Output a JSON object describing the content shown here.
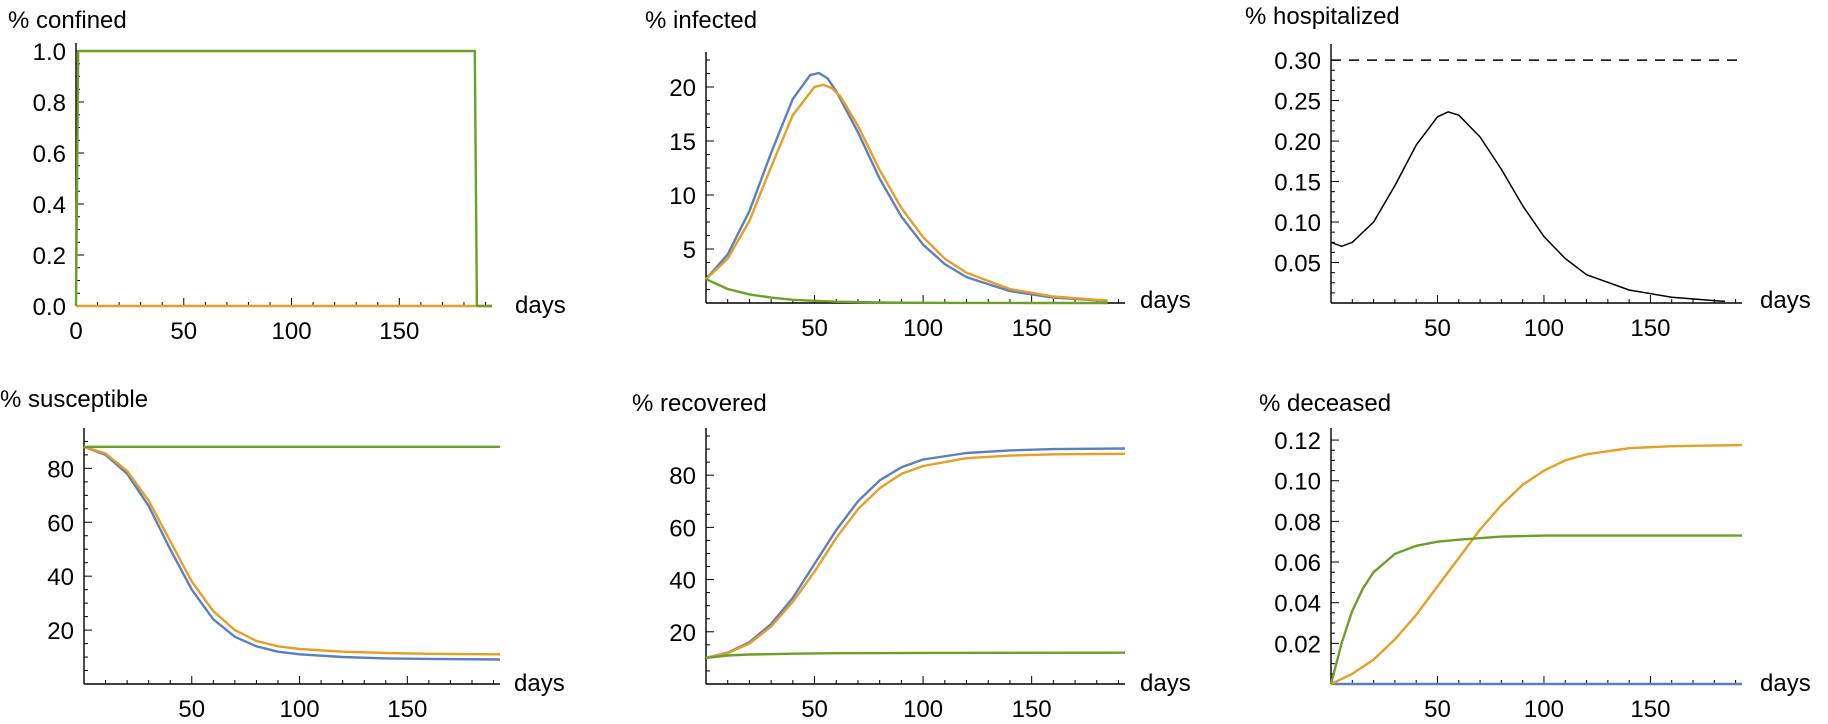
{
  "chart_data": [
    {
      "type": "line",
      "title": "% confined",
      "xlabel": "days",
      "ylabel": "",
      "xlim": [
        0,
        193
      ],
      "ylim": [
        0,
        1.0
      ],
      "xticks": [
        0,
        50,
        100,
        150
      ],
      "yticks": [
        0.0,
        0.2,
        0.4,
        0.6,
        0.8,
        1.0
      ],
      "ytick_labels": [
        "0.0",
        "0.2",
        "0.4",
        "0.6",
        "0.8",
        "1.0"
      ],
      "series": [
        {
          "color": "#e69f26",
          "x": [
            0,
            193
          ],
          "y": [
            0,
            0
          ]
        },
        {
          "color": "#6aa02a",
          "x": [
            0,
            0,
            1,
            185,
            186,
            193
          ],
          "y": [
            0,
            0,
            1,
            1,
            0,
            0
          ]
        }
      ]
    },
    {
      "type": "line",
      "title": "% infected",
      "xlabel": "days",
      "ylabel": "",
      "xlim": [
        0,
        193
      ],
      "ylim": [
        0,
        22.5
      ],
      "xticks": [
        50,
        100,
        150
      ],
      "yticks": [
        5,
        10,
        15,
        20
      ],
      "ytick_labels": [
        "5",
        "10",
        "15",
        "20"
      ],
      "series": [
        {
          "color": "#5b7fbf",
          "x": [
            0,
            10,
            20,
            30,
            40,
            48,
            52,
            56,
            60,
            70,
            80,
            90,
            100,
            110,
            120,
            140,
            160,
            180,
            185
          ],
          "y": [
            2.2,
            4.5,
            8.5,
            13.9,
            18.9,
            21.1,
            21.3,
            20.8,
            19.6,
            15.8,
            11.5,
            8.0,
            5.4,
            3.6,
            2.4,
            1.1,
            0.5,
            0.25,
            0.2
          ]
        },
        {
          "color": "#e69f26",
          "x": [
            0,
            10,
            20,
            30,
            40,
            50,
            54,
            58,
            62,
            70,
            80,
            90,
            100,
            110,
            120,
            140,
            160,
            180,
            185
          ],
          "y": [
            2.2,
            4.1,
            7.6,
            12.6,
            17.4,
            20.0,
            20.2,
            19.9,
            19.1,
            16.4,
            12.3,
            8.8,
            6.1,
            4.1,
            2.8,
            1.3,
            0.6,
            0.3,
            0.25
          ]
        },
        {
          "color": "#6aa02a",
          "x": [
            0,
            10,
            20,
            30,
            40,
            50,
            60,
            80,
            100,
            120,
            150,
            185
          ],
          "y": [
            2.2,
            1.3,
            0.8,
            0.5,
            0.3,
            0.2,
            0.12,
            0.05,
            0.02,
            0.01,
            0,
            0
          ]
        }
      ]
    },
    {
      "type": "line",
      "title": "% hospitalized",
      "xlabel": "days",
      "ylabel": "",
      "xlim": [
        0,
        193
      ],
      "ylim": [
        0,
        0.31
      ],
      "xticks": [
        50,
        100,
        150
      ],
      "yticks": [
        0.05,
        0.1,
        0.15,
        0.2,
        0.25,
        0.3
      ],
      "ytick_labels": [
        "0.05",
        "0.10",
        "0.15",
        "0.20",
        "0.25",
        "0.30"
      ],
      "series": [
        {
          "color": "#000000",
          "dashed": true,
          "x": [
            0,
            193
          ],
          "y": [
            0.3,
            0.3
          ]
        },
        {
          "color": "#000000",
          "x": [
            0,
            5,
            10,
            20,
            30,
            40,
            50,
            55,
            60,
            70,
            80,
            90,
            100,
            110,
            120,
            140,
            160,
            180,
            185
          ],
          "y": [
            0.075,
            0.07,
            0.075,
            0.1,
            0.145,
            0.195,
            0.23,
            0.236,
            0.232,
            0.205,
            0.165,
            0.12,
            0.082,
            0.055,
            0.035,
            0.016,
            0.007,
            0.003,
            0.002
          ]
        }
      ]
    },
    {
      "type": "line",
      "title": "% susceptible",
      "xlabel": "days",
      "ylabel": "",
      "xlim": [
        0,
        193
      ],
      "ylim": [
        0,
        92
      ],
      "xticks": [
        50,
        100,
        150
      ],
      "yticks": [
        20,
        40,
        60,
        80
      ],
      "ytick_labels": [
        "20",
        "40",
        "60",
        "80"
      ],
      "series": [
        {
          "color": "#5b7fbf",
          "x": [
            0,
            10,
            20,
            30,
            40,
            50,
            60,
            70,
            80,
            90,
            100,
            120,
            140,
            160,
            193
          ],
          "y": [
            88,
            85,
            78,
            66,
            50,
            35,
            24,
            17.5,
            14,
            12,
            11,
            10,
            9.5,
            9.3,
            9.1
          ]
        },
        {
          "color": "#e69f26",
          "x": [
            0,
            10,
            20,
            30,
            40,
            50,
            60,
            70,
            80,
            90,
            100,
            120,
            140,
            160,
            193
          ],
          "y": [
            88,
            85.5,
            79,
            68,
            53,
            38,
            27,
            20,
            16,
            14,
            13,
            12,
            11.5,
            11.2,
            11
          ]
        },
        {
          "color": "#6aa02a",
          "x": [
            0,
            193
          ],
          "y": [
            88,
            88
          ]
        }
      ]
    },
    {
      "type": "line",
      "title": "% recovered",
      "xlabel": "days",
      "ylabel": "",
      "xlim": [
        0,
        193
      ],
      "ylim": [
        0,
        95
      ],
      "xticks": [
        50,
        100,
        150
      ],
      "yticks": [
        20,
        40,
        60,
        80
      ],
      "ytick_labels": [
        "20",
        "40",
        "60",
        "80"
      ],
      "series": [
        {
          "color": "#5b7fbf",
          "x": [
            0,
            10,
            20,
            30,
            40,
            50,
            60,
            70,
            80,
            90,
            100,
            120,
            140,
            160,
            193
          ],
          "y": [
            10,
            12,
            16,
            23,
            33,
            46,
            59,
            70,
            78,
            83,
            86,
            88.5,
            89.5,
            90,
            90.2
          ]
        },
        {
          "color": "#e69f26",
          "x": [
            0,
            10,
            20,
            30,
            40,
            50,
            60,
            70,
            80,
            90,
            100,
            120,
            140,
            160,
            193
          ],
          "y": [
            10,
            11.8,
            15.5,
            22,
            31.5,
            43,
            56,
            67,
            75,
            80.5,
            83.5,
            86.5,
            87.5,
            88,
            88.2
          ]
        },
        {
          "color": "#6aa02a",
          "x": [
            0,
            10,
            20,
            40,
            60,
            100,
            193
          ],
          "y": [
            10,
            10.9,
            11.3,
            11.6,
            11.8,
            11.9,
            12
          ]
        }
      ]
    },
    {
      "type": "line",
      "title": "% deceased",
      "xlabel": "days",
      "ylabel": "",
      "xlim": [
        0,
        193
      ],
      "ylim": [
        0,
        0.122
      ],
      "xticks": [
        50,
        100,
        150
      ],
      "yticks": [
        0.02,
        0.04,
        0.06,
        0.08,
        0.1,
        0.12
      ],
      "ytick_labels": [
        "0.02",
        "0.04",
        "0.06",
        "0.08",
        "0.10",
        "0.12"
      ],
      "series": [
        {
          "color": "#5b7fbf",
          "x": [
            0,
            193
          ],
          "y": [
            0,
            0
          ]
        },
        {
          "color": "#e69f26",
          "x": [
            0,
            10,
            20,
            30,
            40,
            50,
            60,
            70,
            80,
            90,
            100,
            110,
            120,
            140,
            160,
            193
          ],
          "y": [
            0,
            0.005,
            0.012,
            0.022,
            0.034,
            0.048,
            0.062,
            0.076,
            0.088,
            0.098,
            0.105,
            0.11,
            0.113,
            0.116,
            0.117,
            0.1175
          ]
        },
        {
          "color": "#6aa02a",
          "x": [
            0,
            5,
            10,
            15,
            20,
            30,
            40,
            50,
            60,
            80,
            100,
            193
          ],
          "y": [
            0,
            0.02,
            0.036,
            0.047,
            0.055,
            0.064,
            0.068,
            0.07,
            0.071,
            0.0725,
            0.073,
            0.073
          ]
        }
      ]
    }
  ]
}
